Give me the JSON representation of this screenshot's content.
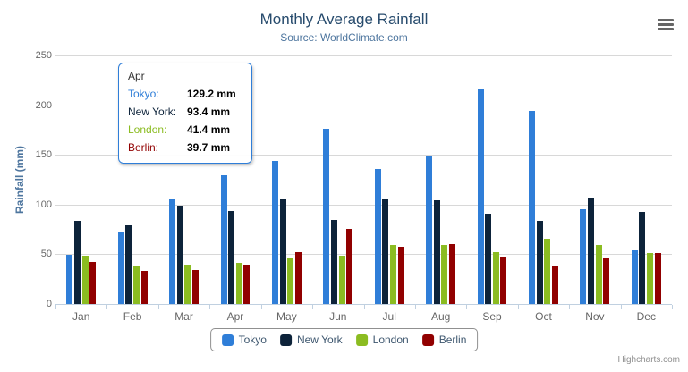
{
  "chart": {
    "title": "Monthly Average Rainfall",
    "subtitle": "Source: WorldClimate.com",
    "y_axis_title": "Rainfall (mm)",
    "credits": "Highcharts.com"
  },
  "chart_data": {
    "type": "bar",
    "title": "Monthly Average Rainfall",
    "subtitle": "Source: WorldClimate.com",
    "xlabel": "",
    "ylabel": "Rainfall (mm)",
    "ylim": [
      0,
      250
    ],
    "yticks": [
      0,
      50,
      100,
      150,
      200,
      250
    ],
    "grid": true,
    "legend_position": "bottom",
    "unit": "mm",
    "categories": [
      "Jan",
      "Feb",
      "Mar",
      "Apr",
      "May",
      "Jun",
      "Jul",
      "Aug",
      "Sep",
      "Oct",
      "Nov",
      "Dec"
    ],
    "series": [
      {
        "name": "Tokyo",
        "color": "#2f7ed8",
        "values": [
          49.9,
          71.5,
          106.4,
          129.2,
          144.0,
          176.0,
          135.6,
          148.5,
          216.4,
          194.1,
          95.6,
          54.4
        ]
      },
      {
        "name": "New York",
        "color": "#0d233a",
        "values": [
          83.6,
          78.8,
          98.5,
          93.4,
          106.0,
          84.5,
          105.0,
          104.3,
          91.2,
          83.5,
          106.6,
          92.3
        ]
      },
      {
        "name": "London",
        "color": "#8bbc21",
        "values": [
          48.9,
          38.8,
          39.3,
          41.4,
          47.0,
          48.3,
          59.0,
          59.6,
          52.4,
          65.2,
          59.3,
          51.2
        ]
      },
      {
        "name": "Berlin",
        "color": "#910000",
        "values": [
          42.4,
          33.2,
          34.5,
          39.7,
          52.6,
          75.5,
          57.4,
          60.4,
          47.6,
          39.1,
          46.8,
          51.1
        ]
      }
    ]
  },
  "tooltip": {
    "category": "Apr",
    "rows": [
      {
        "label": "Tokyo:",
        "value": "129.2 mm",
        "color": "#2f7ed8"
      },
      {
        "label": "New York:",
        "value": "93.4 mm",
        "color": "#0d233a"
      },
      {
        "label": "London:",
        "value": "41.4 mm",
        "color": "#8bbc21"
      },
      {
        "label": "Berlin:",
        "value": "39.7 mm",
        "color": "#910000"
      }
    ]
  },
  "legend": {
    "items": [
      {
        "label": "Tokyo",
        "color": "#2f7ed8"
      },
      {
        "label": "New York",
        "color": "#0d233a"
      },
      {
        "label": "London",
        "color": "#8bbc21"
      },
      {
        "label": "Berlin",
        "color": "#910000"
      }
    ]
  }
}
